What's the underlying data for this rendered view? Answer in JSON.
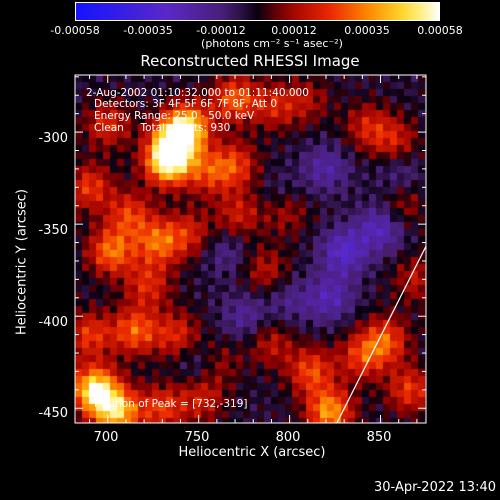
{
  "colorbar": {
    "ticks": [
      "-0.00058",
      "-0.00035",
      "-0.00012",
      "0.00012",
      "0.00035",
      "0.00058"
    ],
    "units": "(photons cm⁻² s⁻¹ asec⁻²)",
    "range": [
      -0.00058,
      0.00058
    ]
  },
  "chart_data": {
    "type": "heatmap",
    "title": "Reconstructed RHESSI Image",
    "xlabel": "Heliocentric X (arcsec)",
    "ylabel": "Heliocentric Y (arcsec)",
    "xlim": [
      682,
      875
    ],
    "ylim": [
      -458,
      -269
    ],
    "x_ticks": [
      700,
      750,
      800,
      850
    ],
    "y_ticks": [
      -300,
      -350,
      -400,
      -450
    ],
    "peak_position": [
      732,
      -319
    ],
    "annotations": [
      "2-Aug-2002 01:10:32.000 to 01:11:40.000",
      "Detectors: 3F 4F 5F 6F 7F 8F, Att 0",
      "Energy Range: 25.0 - 50.0 keV",
      "Clean     Total counts: 930",
      "Position of Peak = [732,-319]"
    ],
    "limb_line": [
      [
        826,
        -458
      ],
      [
        875,
        -362
      ]
    ],
    "sources": [
      {
        "x": 733,
        "y": -316,
        "v": 1.0
      },
      {
        "x": 738,
        "y": -303,
        "v": 0.85
      },
      {
        "x": 745,
        "y": -296,
        "v": 0.55
      },
      {
        "x": 755,
        "y": -322,
        "v": 0.4
      },
      {
        "x": 770,
        "y": -318,
        "v": 0.45
      },
      {
        "x": 770,
        "y": -282,
        "v": 0.55
      },
      {
        "x": 792,
        "y": -286,
        "v": 0.35
      },
      {
        "x": 810,
        "y": -283,
        "v": 0.25
      },
      {
        "x": 843,
        "y": -297,
        "v": 0.35
      },
      {
        "x": 858,
        "y": -305,
        "v": 0.35
      },
      {
        "x": 700,
        "y": -296,
        "v": 0.4
      },
      {
        "x": 690,
        "y": -330,
        "v": 0.45
      },
      {
        "x": 712,
        "y": -345,
        "v": 0.45
      },
      {
        "x": 702,
        "y": -365,
        "v": 0.6
      },
      {
        "x": 728,
        "y": -360,
        "v": 0.55
      },
      {
        "x": 745,
        "y": -355,
        "v": 0.35
      },
      {
        "x": 722,
        "y": -383,
        "v": 0.4
      },
      {
        "x": 715,
        "y": -408,
        "v": 0.55
      },
      {
        "x": 738,
        "y": -410,
        "v": 0.4
      },
      {
        "x": 690,
        "y": -410,
        "v": 0.45
      },
      {
        "x": 693,
        "y": -440,
        "v": 0.95
      },
      {
        "x": 705,
        "y": -452,
        "v": 0.8
      },
      {
        "x": 730,
        "y": -450,
        "v": 0.45
      },
      {
        "x": 752,
        "y": -445,
        "v": 0.35
      },
      {
        "x": 760,
        "y": -425,
        "v": 0.3
      },
      {
        "x": 790,
        "y": -415,
        "v": 0.3
      },
      {
        "x": 812,
        "y": -430,
        "v": 0.5
      },
      {
        "x": 822,
        "y": -452,
        "v": 0.7
      },
      {
        "x": 840,
        "y": -422,
        "v": 0.45
      },
      {
        "x": 853,
        "y": -413,
        "v": 0.5
      },
      {
        "x": 866,
        "y": -440,
        "v": 0.45
      },
      {
        "x": 798,
        "y": -343,
        "v": 0.3
      },
      {
        "x": 787,
        "y": -375,
        "v": 0.3
      },
      {
        "x": 772,
        "y": -345,
        "v": 0.35
      },
      {
        "x": 870,
        "y": -380,
        "v": 0.3
      },
      {
        "x": 862,
        "y": -340,
        "v": 0.25
      }
    ],
    "sinks": [
      {
        "x": 830,
        "y": -365,
        "v": -0.45
      },
      {
        "x": 850,
        "y": -352,
        "v": -0.4
      },
      {
        "x": 822,
        "y": -390,
        "v": -0.35
      },
      {
        "x": 775,
        "y": -400,
        "v": -0.25
      },
      {
        "x": 765,
        "y": -365,
        "v": -0.2
      },
      {
        "x": 752,
        "y": -425,
        "v": -0.25
      },
      {
        "x": 820,
        "y": -320,
        "v": -0.3
      },
      {
        "x": 860,
        "y": -322,
        "v": -0.2
      },
      {
        "x": 800,
        "y": -392,
        "v": -0.2
      },
      {
        "x": 795,
        "y": -335,
        "v": -0.15
      }
    ]
  },
  "footer": {
    "timestamp": "30-Apr-2022 13:40"
  }
}
